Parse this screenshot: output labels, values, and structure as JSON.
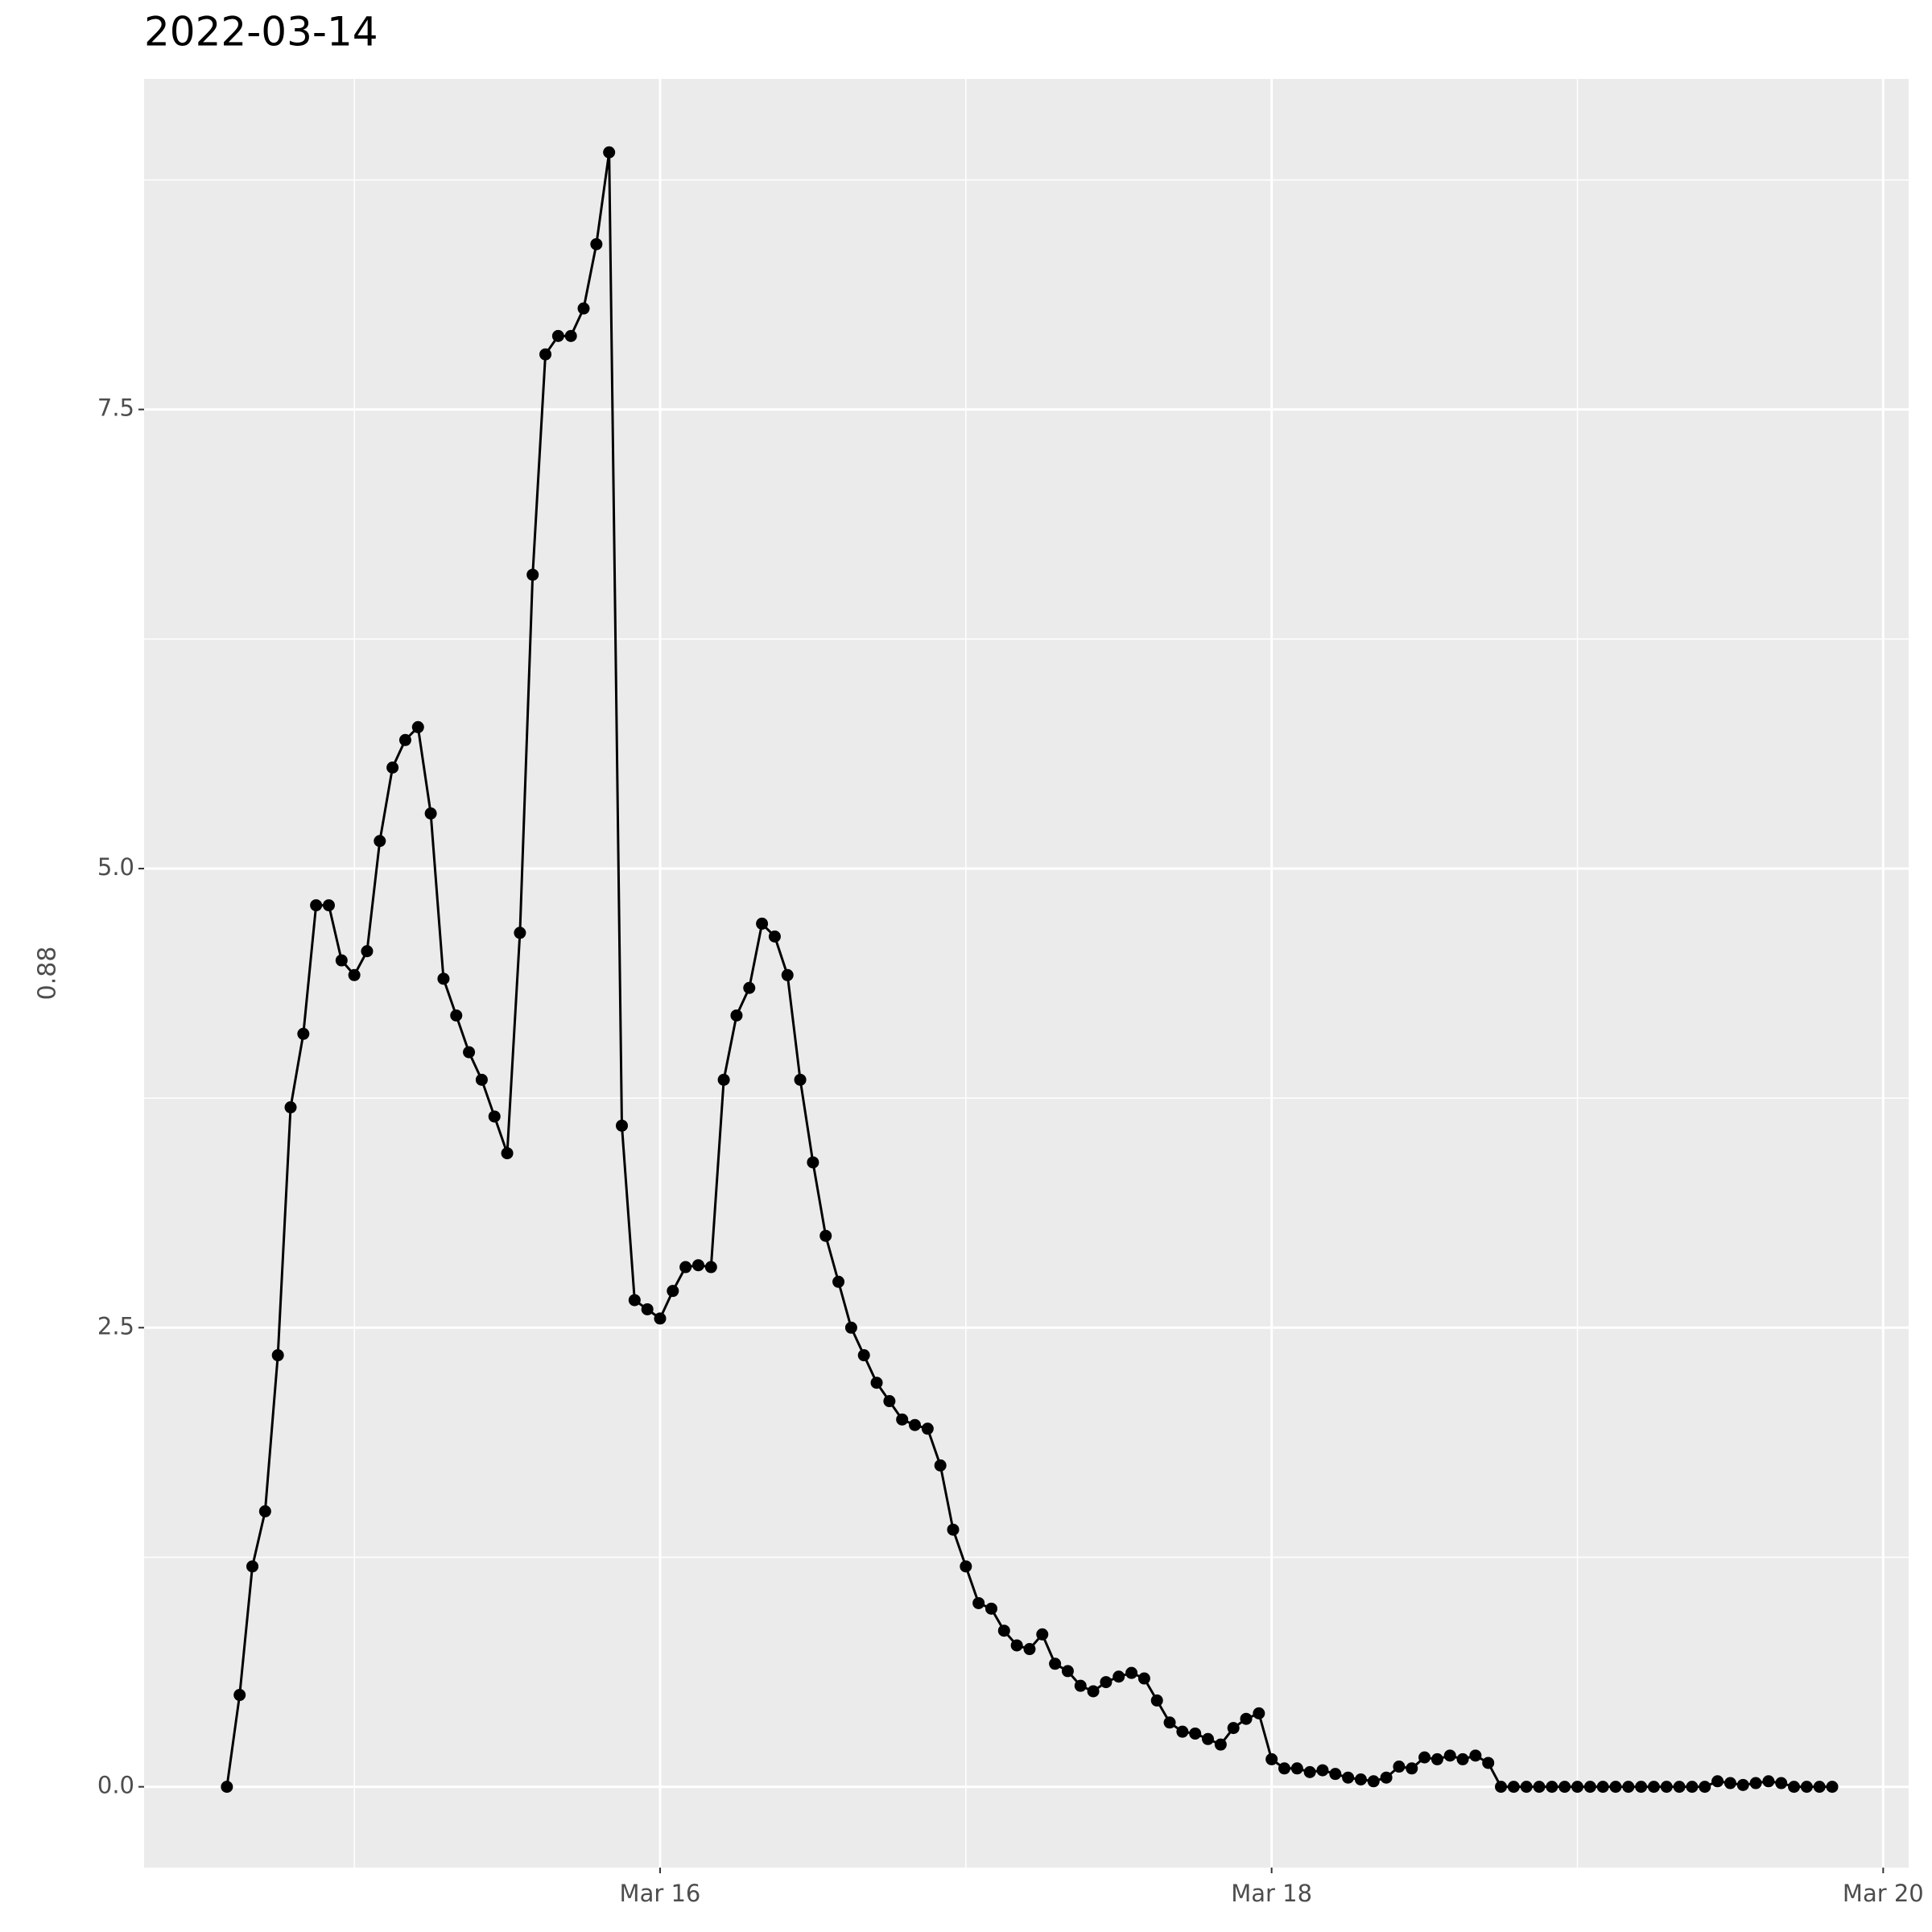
{
  "chart_data": {
    "type": "line",
    "title": "2022-03-14",
    "y_label": "0.88",
    "color": "#000000",
    "grid": true,
    "x": [
      "2022-03-14T14:00",
      "2022-03-14T15:00",
      "2022-03-14T16:00",
      "2022-03-14T17:00",
      "2022-03-14T18:00",
      "2022-03-14T19:00",
      "2022-03-14T20:00",
      "2022-03-14T21:00",
      "2022-03-14T22:00",
      "2022-03-14T23:00",
      "2022-03-15T00:00",
      "2022-03-15T01:00",
      "2022-03-15T02:00",
      "2022-03-15T03:00",
      "2022-03-15T04:00",
      "2022-03-15T05:00",
      "2022-03-15T06:00",
      "2022-03-15T07:00",
      "2022-03-15T08:00",
      "2022-03-15T09:00",
      "2022-03-15T10:00",
      "2022-03-15T11:00",
      "2022-03-15T12:00",
      "2022-03-15T13:00",
      "2022-03-15T14:00",
      "2022-03-15T15:00",
      "2022-03-15T16:00",
      "2022-03-15T17:00",
      "2022-03-15T18:00",
      "2022-03-15T19:00",
      "2022-03-15T20:00",
      "2022-03-15T21:00",
      "2022-03-15T22:00",
      "2022-03-15T23:00",
      "2022-03-16T00:00",
      "2022-03-16T01:00",
      "2022-03-16T02:00",
      "2022-03-16T03:00",
      "2022-03-16T04:00",
      "2022-03-16T05:00",
      "2022-03-16T06:00",
      "2022-03-16T07:00",
      "2022-03-16T08:00",
      "2022-03-16T09:00",
      "2022-03-16T10:00",
      "2022-03-16T11:00",
      "2022-03-16T12:00",
      "2022-03-16T13:00",
      "2022-03-16T14:00",
      "2022-03-16T15:00",
      "2022-03-16T16:00",
      "2022-03-16T17:00",
      "2022-03-16T18:00",
      "2022-03-16T19:00",
      "2022-03-16T20:00",
      "2022-03-16T21:00",
      "2022-03-16T22:00",
      "2022-03-16T23:00",
      "2022-03-17T00:00",
      "2022-03-17T01:00",
      "2022-03-17T02:00",
      "2022-03-17T03:00",
      "2022-03-17T04:00",
      "2022-03-17T05:00",
      "2022-03-17T06:00",
      "2022-03-17T07:00",
      "2022-03-17T08:00",
      "2022-03-17T09:00",
      "2022-03-17T10:00",
      "2022-03-17T11:00",
      "2022-03-17T12:00",
      "2022-03-17T13:00",
      "2022-03-17T14:00",
      "2022-03-17T15:00",
      "2022-03-17T16:00",
      "2022-03-17T17:00",
      "2022-03-17T18:00",
      "2022-03-17T19:00",
      "2022-03-17T20:00",
      "2022-03-17T21:00",
      "2022-03-17T22:00",
      "2022-03-17T23:00",
      "2022-03-18T00:00",
      "2022-03-18T01:00",
      "2022-03-18T02:00",
      "2022-03-18T03:00",
      "2022-03-18T04:00",
      "2022-03-18T05:00",
      "2022-03-18T06:00",
      "2022-03-18T07:00",
      "2022-03-18T08:00",
      "2022-03-18T09:00",
      "2022-03-18T10:00",
      "2022-03-18T11:00",
      "2022-03-18T12:00",
      "2022-03-18T13:00",
      "2022-03-18T14:00",
      "2022-03-18T15:00",
      "2022-03-18T16:00",
      "2022-03-18T17:00",
      "2022-03-18T18:00",
      "2022-03-18T19:00",
      "2022-03-18T20:00",
      "2022-03-18T21:00",
      "2022-03-18T22:00",
      "2022-03-18T23:00",
      "2022-03-19T00:00",
      "2022-03-19T01:00",
      "2022-03-19T02:00",
      "2022-03-19T03:00",
      "2022-03-19T04:00",
      "2022-03-19T05:00",
      "2022-03-19T06:00",
      "2022-03-19T07:00",
      "2022-03-19T08:00",
      "2022-03-19T09:00",
      "2022-03-19T10:00",
      "2022-03-19T11:00",
      "2022-03-19T12:00",
      "2022-03-19T13:00",
      "2022-03-19T14:00",
      "2022-03-19T15:00",
      "2022-03-19T16:00",
      "2022-03-19T17:00",
      "2022-03-19T18:00",
      "2022-03-19T19:00",
      "2022-03-19T20:00"
    ],
    "values": [
      0.0,
      0.5,
      1.2,
      1.5,
      2.35,
      3.7,
      4.1,
      4.8,
      4.8,
      4.5,
      4.42,
      4.55,
      5.15,
      5.55,
      5.7,
      5.77,
      5.3,
      4.4,
      4.2,
      4.0,
      3.85,
      3.65,
      3.45,
      4.65,
      6.6,
      7.8,
      7.9,
      7.9,
      8.05,
      8.4,
      8.9,
      3.6,
      2.65,
      2.6,
      2.55,
      2.7,
      2.83,
      2.84,
      2.83,
      3.85,
      4.2,
      4.35,
      4.7,
      4.63,
      4.42,
      3.85,
      3.4,
      3.0,
      2.75,
      2.5,
      2.35,
      2.2,
      2.1,
      2.0,
      1.97,
      1.95,
      1.75,
      1.4,
      1.2,
      1.0,
      0.97,
      0.85,
      0.77,
      0.75,
      0.83,
      0.67,
      0.63,
      0.55,
      0.52,
      0.57,
      0.6,
      0.62,
      0.59,
      0.47,
      0.35,
      0.3,
      0.29,
      0.26,
      0.23,
      0.32,
      0.37,
      0.4,
      0.15,
      0.1,
      0.1,
      0.08,
      0.09,
      0.07,
      0.05,
      0.04,
      0.03,
      0.05,
      0.11,
      0.1,
      0.16,
      0.15,
      0.17,
      0.15,
      0.17,
      0.13,
      0.0,
      0.0,
      0.0,
      0.0,
      0.0,
      0.0,
      0.0,
      0.0,
      0.0,
      0.0,
      0.0,
      0.0,
      0.0,
      0.0,
      0.0,
      0.0,
      0.0,
      0.03,
      0.02,
      0.01,
      0.02,
      0.03,
      0.02,
      0.0,
      0.0,
      0.0,
      0.0
    ],
    "xlim": [
      "2022-03-14T07:30",
      "2022-03-20T02:00"
    ],
    "xticks": [
      {
        "value": "2022-03-16",
        "label": "Mar 16"
      },
      {
        "value": "2022-03-18",
        "label": "Mar 18"
      },
      {
        "value": "2022-03-20",
        "label": "Mar 20"
      }
    ],
    "x_minor_grid": [
      "2022-03-15",
      "2022-03-17",
      "2022-03-19"
    ],
    "ylim": [
      -0.44,
      9.3
    ],
    "yticks": [
      {
        "value": 0,
        "label": "0.0"
      },
      {
        "value": 2.5,
        "label": "2.5"
      },
      {
        "value": 5,
        "label": "5.0"
      },
      {
        "value": 7.5,
        "label": "7.5"
      }
    ],
    "y_minor_grid": [
      1.25,
      3.75,
      6.25,
      8.75
    ]
  }
}
